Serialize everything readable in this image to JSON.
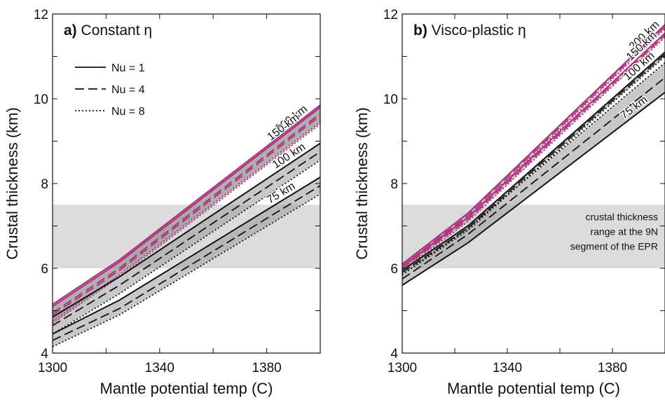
{
  "chart_data": [
    {
      "type": "line",
      "panel_label": "a)",
      "title": "Constant η",
      "xlabel": "Mantle potential temp (C)",
      "ylabel": "Crustal thickness (km)",
      "xlim": [
        1300,
        1400
      ],
      "ylim": [
        4,
        12
      ],
      "xticks": [
        1300,
        1340,
        1380
      ],
      "yticks": [
        4,
        6,
        8,
        10,
        12
      ],
      "legend": {
        "position": "top-left",
        "entries": [
          {
            "label": "Nu = 1",
            "dash": "solid"
          },
          {
            "label": "Nu = 4",
            "dash": "dashed"
          },
          {
            "label": "Nu = 8",
            "dash": "dotted"
          }
        ]
      },
      "reference_band": {
        "y_range": [
          6,
          7.5
        ],
        "color": "#dcdcdc"
      },
      "groups": [
        {
          "label": "200 km",
          "label_at_x": 1390,
          "color": "#b0297a",
          "lines": [
            {
              "nu": "Nu = 1",
              "x": [
                1300,
                1325,
                1400
              ],
              "y": [
                5.15,
                6.2,
                9.85
              ]
            },
            {
              "nu": "Nu = 4",
              "x": [
                1300,
                1325,
                1400
              ],
              "y": [
                4.95,
                6.0,
                9.65
              ]
            },
            {
              "nu": "Nu = 8",
              "x": [
                1300,
                1325,
                1400
              ],
              "y": [
                4.75,
                5.85,
                9.45
              ]
            }
          ]
        },
        {
          "label": "150 km",
          "label_at_x": 1387,
          "color": "#b0297a",
          "lines": [
            {
              "nu": "Nu = 1",
              "x": [
                1300,
                1325,
                1400
              ],
              "y": [
                5.1,
                6.15,
                9.8
              ]
            },
            {
              "nu": "Nu = 4",
              "x": [
                1300,
                1325,
                1400
              ],
              "y": [
                4.9,
                5.95,
                9.6
              ]
            },
            {
              "nu": "Nu = 8",
              "x": [
                1300,
                1325,
                1400
              ],
              "y": [
                4.7,
                5.8,
                9.4
              ]
            }
          ]
        },
        {
          "label": "100 km",
          "label_at_x": 1389,
          "color": "#111111",
          "lines": [
            {
              "nu": "Nu = 1",
              "x": [
                1300,
                1325,
                1400
              ],
              "y": [
                4.85,
                5.8,
                8.95
              ]
            },
            {
              "nu": "Nu = 4",
              "x": [
                1300,
                1325,
                1400
              ],
              "y": [
                4.65,
                5.6,
                8.75
              ]
            },
            {
              "nu": "Nu = 8",
              "x": [
                1300,
                1325,
                1400
              ],
              "y": [
                4.45,
                5.4,
                8.55
              ]
            }
          ]
        },
        {
          "label": "75 km",
          "label_at_x": 1386,
          "color": "#111111",
          "lines": [
            {
              "nu": "Nu = 1",
              "x": [
                1300,
                1325,
                1400
              ],
              "y": [
                4.45,
                5.25,
                8.15
              ]
            },
            {
              "nu": "Nu = 4",
              "x": [
                1300,
                1325,
                1400
              ],
              "y": [
                4.3,
                5.05,
                7.95
              ]
            },
            {
              "nu": "Nu = 8",
              "x": [
                1300,
                1325,
                1400
              ],
              "y": [
                4.15,
                4.9,
                7.75
              ]
            }
          ]
        }
      ]
    },
    {
      "type": "line",
      "panel_label": "b)",
      "title": "Visco-plastic η",
      "xlabel": "Mantle potential temp (C)",
      "ylabel": "Crustal thickness (km)",
      "xlim": [
        1300,
        1400
      ],
      "ylim": [
        4,
        12
      ],
      "xticks": [
        1300,
        1340,
        1380
      ],
      "yticks": [
        4,
        6,
        8,
        10,
        12
      ],
      "reference_band": {
        "y_range": [
          6,
          7.5
        ],
        "color": "#dcdcdc"
      },
      "annotation": [
        "crustal thickness",
        "range at the 9N",
        "segment of the EPR"
      ],
      "groups": [
        {
          "label": "200 km",
          "label_at_x": 1393,
          "color": "#b0297a",
          "lines": [
            {
              "nu": "Nu = 1",
              "x": [
                1300,
                1325,
                1400
              ],
              "y": [
                6.1,
                7.3,
                11.75
              ]
            },
            {
              "nu": "Nu = 4",
              "x": [
                1300,
                1325,
                1400
              ],
              "y": [
                6.05,
                7.25,
                11.7
              ]
            },
            {
              "nu": "Nu = 8",
              "x": [
                1300,
                1325,
                1400
              ],
              "y": [
                6.0,
                7.2,
                11.65
              ]
            }
          ]
        },
        {
          "label": "150 km",
          "label_at_x": 1392,
          "color": "#b0297a",
          "lines": [
            {
              "nu": "Nu = 1",
              "x": [
                1300,
                1325,
                1400
              ],
              "y": [
                6.05,
                7.2,
                11.55
              ]
            },
            {
              "nu": "Nu = 4",
              "x": [
                1300,
                1325,
                1400
              ],
              "y": [
                6.0,
                7.15,
                11.5
              ]
            },
            {
              "nu": "Nu = 8",
              "x": [
                1300,
                1325,
                1400
              ],
              "y": [
                5.95,
                7.1,
                11.45
              ]
            }
          ]
        },
        {
          "label": "100 km",
          "label_at_x": 1391,
          "color": "#111111",
          "lines": [
            {
              "nu": "Nu = 1",
              "x": [
                1300,
                1325,
                1400
              ],
              "y": [
                5.95,
                7.0,
                11.1
              ]
            },
            {
              "nu": "Nu = 4",
              "x": [
                1300,
                1325,
                1400
              ],
              "y": [
                5.9,
                6.95,
                11.05
              ]
            },
            {
              "nu": "Nu = 8",
              "x": [
                1300,
                1325,
                1400
              ],
              "y": [
                5.85,
                6.9,
                11.0
              ]
            }
          ]
        },
        {
          "label": "75 km",
          "label_at_x": 1389,
          "color": "#111111",
          "lines": [
            {
              "nu": "Nu = 1",
              "x": [
                1300,
                1325,
                1400
              ],
              "y": [
                5.6,
                6.6,
                10.15
              ]
            },
            {
              "nu": "Nu = 4",
              "x": [
                1300,
                1325,
                1400
              ],
              "y": [
                5.75,
                6.8,
                10.5
              ]
            },
            {
              "nu": "Nu = 8",
              "x": [
                1300,
                1325,
                1400
              ],
              "y": [
                5.85,
                6.95,
                10.85
              ]
            }
          ]
        }
      ]
    }
  ]
}
